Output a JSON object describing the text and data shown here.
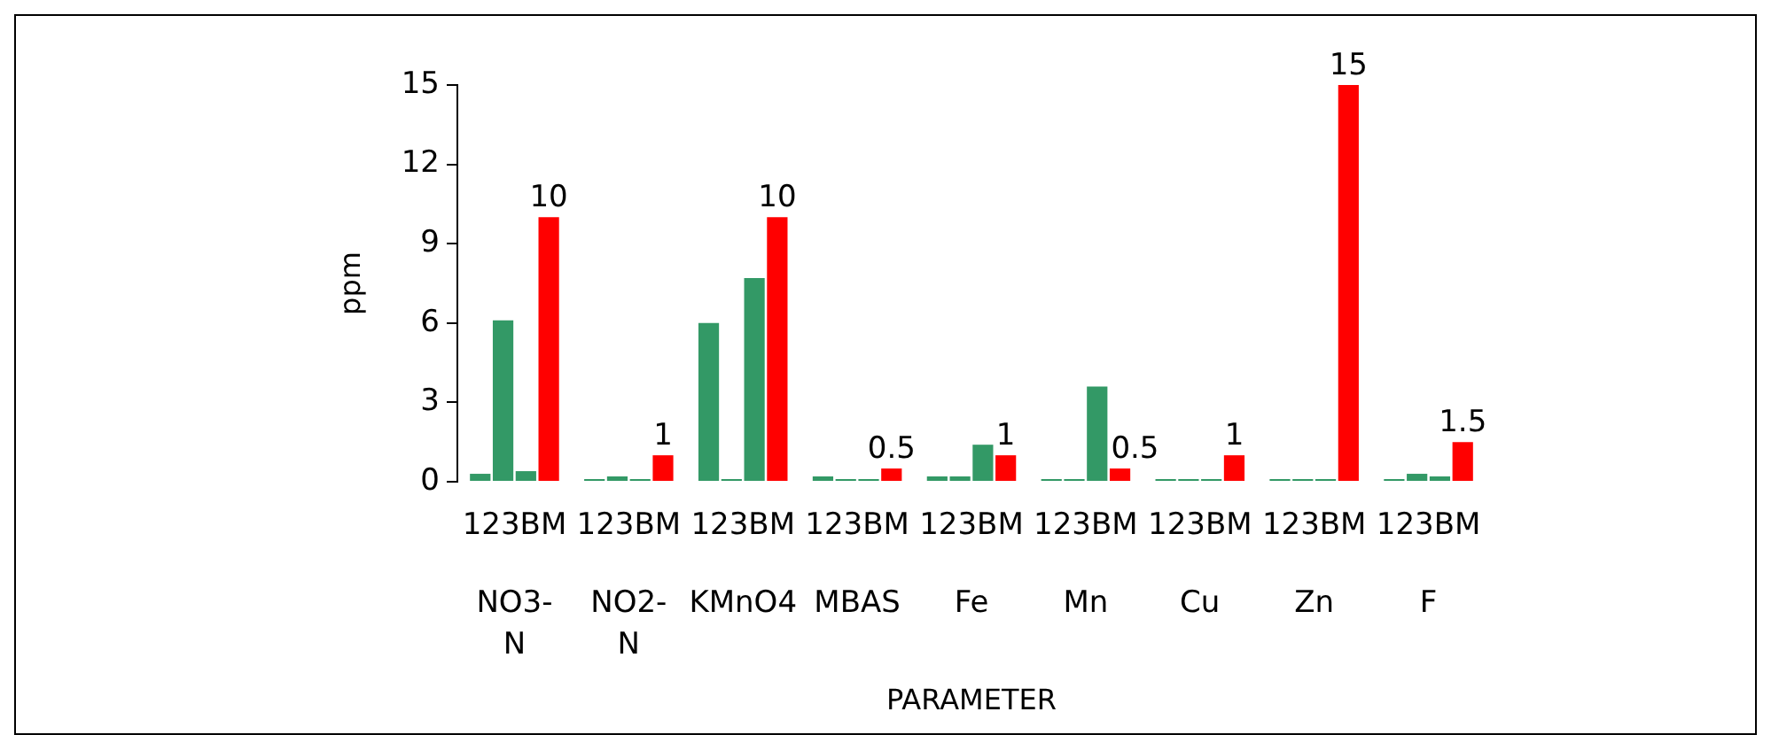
{
  "chart_data": {
    "type": "bar",
    "xlabel": "PARAMETER",
    "ylabel": "ppm",
    "categories": [
      "NO3-N",
      "NO2-N",
      "KMnO4",
      "MBAS",
      "Fe",
      "Mn",
      "Cu",
      "Zn",
      "F"
    ],
    "series": [
      {
        "name": "1",
        "color": "#339966",
        "values": [
          0.3,
          0.1,
          6,
          0.2,
          0.2,
          0.1,
          0.1,
          0.1,
          0.1
        ]
      },
      {
        "name": "2",
        "color": "#339966",
        "values": [
          6.1,
          0.2,
          0.1,
          0.1,
          0.2,
          0.1,
          0.1,
          0.1,
          0.3
        ]
      },
      {
        "name": "3",
        "color": "#339966",
        "values": [
          0.4,
          0.1,
          7.7,
          0.1,
          1.4,
          3.6,
          0.1,
          0.1,
          0.2
        ]
      },
      {
        "name": "BM",
        "color": "#ff0000",
        "values": [
          10,
          1,
          10,
          0.5,
          1,
          0.5,
          1,
          15,
          1.5
        ],
        "value_labels": [
          "10",
          "1",
          "10",
          "0.5",
          "1",
          "0.5",
          "1",
          "15",
          "1.5"
        ]
      }
    ],
    "ylim": [
      0,
      15
    ],
    "yticks": [
      0,
      3,
      6,
      9,
      12,
      15
    ],
    "grid": false,
    "legend": false
  }
}
